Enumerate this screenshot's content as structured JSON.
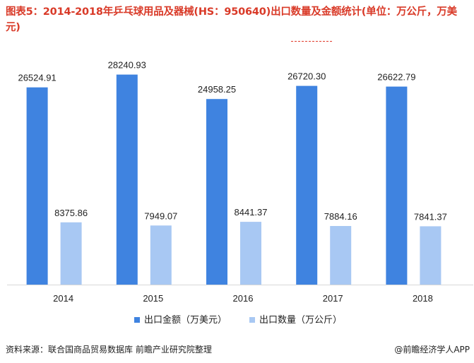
{
  "title": "图表5：2014-2018年乒乓球用品及器械(HS：950640)出口数量及金额统计(单位：万公斤，万美元)",
  "source_text": "资料来源：联合国商品贸易数据库 前瞻产业研究院整理",
  "credit_text": "@前瞻经济学人APP",
  "colors": {
    "title": "#d93a28",
    "series_amount": "#3f83e0",
    "series_quantity": "#a8c8f3",
    "axis": "#d9d9d9",
    "text": "#222222"
  },
  "chart_data": {
    "type": "bar",
    "title": "图表5：2014-2018年乒乓球用品及器械(HS：950640)出口数量及金额统计(单位：万公斤，万美元)",
    "categories": [
      "2014",
      "2015",
      "2016",
      "2017",
      "2018"
    ],
    "series": [
      {
        "name": "出口金额（万美元）",
        "values": [
          26524.91,
          28240.93,
          24958.25,
          26720.3,
          26622.79
        ],
        "labels": [
          "26524.91",
          "28240.93",
          "24958.25",
          "26720.30",
          "26622.79"
        ]
      },
      {
        "name": "出口数量（万公斤）",
        "values": [
          8375.86,
          7949.07,
          8441.37,
          7884.16,
          7841.37
        ],
        "labels": [
          "8375.86",
          "7949.07",
          "8441.37",
          "7884.16",
          "7841.37"
        ]
      }
    ],
    "ylim": [
      0,
      32000
    ],
    "grid": false,
    "legend_position": "bottom",
    "data_labels": true
  }
}
